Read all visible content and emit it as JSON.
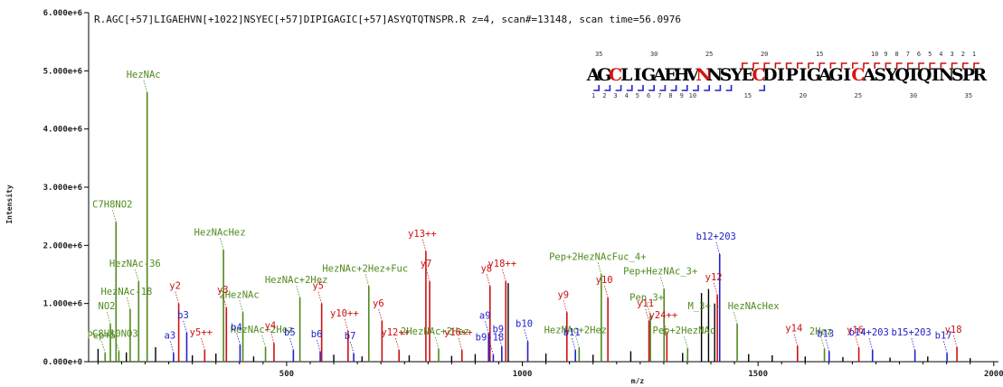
{
  "colors": {
    "b": "#2222cc",
    "y": "#cc1111",
    "glycan": "#4f8a1c",
    "noise": "#000000",
    "mod": "#dd1111"
  },
  "chart_data": {
    "type": "bar",
    "title": "R.AGC[+57]LIGAEHVN[+1022]NSYEC[+57]DIPIGAGIC[+57]ASYQTQTNSPR.R z=4, scan#=13148, scan time=56.0976",
    "xlabel": "m/z",
    "ylabel": "Intensity",
    "xlim": [
      80,
      2010
    ],
    "ylim": [
      0,
      6000000
    ],
    "x_ticks": [
      {
        "value": 500,
        "label": "500"
      },
      {
        "value": 1000,
        "label": "1000"
      },
      {
        "value": 1500,
        "label": "1500"
      },
      {
        "value": 2000,
        "label": "2000"
      }
    ],
    "y_ticks": [
      {
        "value": 0,
        "label": "0.000e+0"
      },
      {
        "value": 1000000,
        "label": "1.000e+6"
      },
      {
        "value": 2000000,
        "label": "2.000e+6"
      },
      {
        "value": 3000000,
        "label": "3.000e+6"
      },
      {
        "value": 4000000,
        "label": "4.000e+6"
      },
      {
        "value": 5000000,
        "label": "5.000e+6"
      },
      {
        "value": 6000000,
        "label": "6.000e+6"
      }
    ],
    "sequence": {
      "letters": [
        "A",
        "G",
        "C",
        "L",
        "I",
        "G",
        "A",
        "E",
        "H",
        "V",
        "N",
        "N",
        "S",
        "Y",
        "E",
        "C",
        "D",
        "I",
        "P",
        "I",
        "G",
        "A",
        "G",
        "I",
        "C",
        "A",
        "S",
        "Y",
        "Q",
        "T",
        "Q",
        "T",
        "N",
        "S",
        "P",
        "R"
      ],
      "modified_positions": [
        2,
        10,
        15,
        24
      ],
      "top_numbers": [
        {
          "pos": 1,
          "label": "35"
        },
        {
          "pos": 6,
          "label": "30"
        },
        {
          "pos": 11,
          "label": "25"
        },
        {
          "pos": 16,
          "label": "20"
        },
        {
          "pos": 21,
          "label": "15"
        },
        {
          "pos": 26,
          "label": "10"
        },
        {
          "pos": 27,
          "label": "9"
        },
        {
          "pos": 28,
          "label": "8"
        },
        {
          "pos": 29,
          "label": "7"
        },
        {
          "pos": 30,
          "label": "6"
        },
        {
          "pos": 31,
          "label": "5"
        },
        {
          "pos": 32,
          "label": "4"
        },
        {
          "pos": 33,
          "label": "3"
        },
        {
          "pos": 34,
          "label": "2"
        },
        {
          "pos": 35,
          "label": "1"
        }
      ],
      "bottom_numbers": [
        {
          "pos": 1,
          "label": "1"
        },
        {
          "pos": 2,
          "label": "2"
        },
        {
          "pos": 3,
          "label": "3"
        },
        {
          "pos": 4,
          "label": "4"
        },
        {
          "pos": 5,
          "label": "5"
        },
        {
          "pos": 6,
          "label": "6"
        },
        {
          "pos": 7,
          "label": "7"
        },
        {
          "pos": 8,
          "label": "8"
        },
        {
          "pos": 9,
          "label": "9"
        },
        {
          "pos": 10,
          "label": "10"
        },
        {
          "pos": 15,
          "label": "15"
        },
        {
          "pos": 20,
          "label": "20"
        },
        {
          "pos": 25,
          "label": "25"
        },
        {
          "pos": 30,
          "label": "30"
        },
        {
          "pos": 35,
          "label": "35"
        }
      ],
      "y_ion_cleavages": [
        14,
        15,
        16,
        17,
        18,
        19,
        20,
        21,
        22,
        23,
        24,
        25,
        26,
        27,
        28,
        29,
        30,
        31,
        32,
        33,
        34,
        35
      ],
      "b_ion_cleavages": [
        1,
        2,
        3,
        4,
        5,
        6,
        7,
        8,
        9,
        10,
        11,
        12,
        13,
        16
      ]
    },
    "series": [
      {
        "name": "glycan",
        "peaks": [
          {
            "mz": 204.1,
            "intensity": 4630000,
            "label": "HezNAc"
          },
          {
            "mz": 138.1,
            "intensity": 2400000,
            "label": "C7H8NO2"
          },
          {
            "mz": 186.1,
            "intensity": 1380000,
            "label": "HezNAc-36"
          },
          {
            "mz": 168.1,
            "intensity": 900000,
            "label": "HezNAc-18"
          },
          {
            "mz": 126.1,
            "intensity": 650000,
            "label": "NO2"
          },
          {
            "mz": 144.1,
            "intensity": 180000,
            "label": "C8H10NO3"
          },
          {
            "mz": 115.0,
            "intensity": 150000,
            "label": "Pep+5"
          },
          {
            "mz": 366.1,
            "intensity": 1920000,
            "label": "HezNAcHez"
          },
          {
            "mz": 407.2,
            "intensity": 850000,
            "label": "2HezNAc"
          },
          {
            "mz": 528.2,
            "intensity": 1100000,
            "label": "HezNAc+2Hez"
          },
          {
            "mz": 674.3,
            "intensity": 1300000,
            "label": "HezNAc+2Hez+Fuc"
          },
          {
            "mz": 1167.5,
            "intensity": 1500000,
            "label": "Pep+2HezNAcFuc_4+"
          },
          {
            "mz": 1300.6,
            "intensity": 1250000,
            "label": "Pep+HezNAc_3+"
          },
          {
            "mz": 1271.6,
            "intensity": 800000,
            "label": "Pep_3+"
          },
          {
            "mz": 1455.7,
            "intensity": 650000,
            "label": "M_3+ - HezNAcHex"
          },
          {
            "mz": 455.2,
            "intensity": 250000,
            "label": "HezNAc+2Hez"
          },
          {
            "mz": 822.4,
            "intensity": 220000,
            "label": "2HezNAc+2Hez"
          },
          {
            "mz": 1120.5,
            "intensity": 240000,
            "label": "HezNAc+2Hez"
          },
          {
            "mz": 1350.6,
            "intensity": 230000,
            "label": "Pep+2HezNAc"
          },
          {
            "mz": 1640.8,
            "intensity": 220000,
            "label": "2Hez"
          }
        ]
      },
      {
        "name": "y",
        "peaks": [
          {
            "mz": 271.1,
            "intensity": 1000000,
            "label": "y2"
          },
          {
            "mz": 372.2,
            "intensity": 930000,
            "label": "y3"
          },
          {
            "mz": 473.2,
            "intensity": 320000,
            "label": "y4"
          },
          {
            "mz": 574.3,
            "intensity": 1000000,
            "label": "y5"
          },
          {
            "mz": 702.3,
            "intensity": 700000,
            "label": "y6"
          },
          {
            "mz": 803.4,
            "intensity": 1380000,
            "label": "y7"
          },
          {
            "mz": 931.4,
            "intensity": 1300000,
            "label": "y8"
          },
          {
            "mz": 1094.5,
            "intensity": 850000,
            "label": "y9"
          },
          {
            "mz": 1181.5,
            "intensity": 1100000,
            "label": "y10"
          },
          {
            "mz": 1268.6,
            "intensity": 700000,
            "label": "y11"
          },
          {
            "mz": 1413.6,
            "intensity": 1150000,
            "label": "y12"
          },
          {
            "mz": 1583.7,
            "intensity": 270000,
            "label": "y14"
          },
          {
            "mz": 1713.8,
            "intensity": 240000,
            "label": "y16"
          },
          {
            "mz": 1921.9,
            "intensity": 250000,
            "label": "y18"
          },
          {
            "mz": 795.4,
            "intensity": 1900000,
            "label": "y13++"
          },
          {
            "mz": 964.9,
            "intensity": 1380000,
            "label": "y18++"
          },
          {
            "mz": 630.3,
            "intensity": 530000,
            "label": "y10++"
          },
          {
            "mz": 738.4,
            "intensity": 200000,
            "label": "y12++"
          },
          {
            "mz": 871.9,
            "intensity": 200000,
            "label": "y16++"
          },
          {
            "mz": 1306.6,
            "intensity": 500000,
            "label": "y24++"
          },
          {
            "mz": 326.2,
            "intensity": 200000,
            "label": "y5++"
          }
        ]
      },
      {
        "name": "b",
        "peaks": [
          {
            "mz": 1418.6,
            "intensity": 1850000,
            "label": "b12+203"
          },
          {
            "mz": 1742.8,
            "intensity": 200000,
            "label": "b14+203"
          },
          {
            "mz": 1832.8,
            "intensity": 200000,
            "label": "b15+203"
          },
          {
            "mz": 1900.9,
            "intensity": 150000,
            "label": "b17"
          },
          {
            "mz": 1650.8,
            "intensity": 180000,
            "label": "b13"
          },
          {
            "mz": 288.1,
            "intensity": 500000,
            "label": "b3"
          },
          {
            "mz": 401.2,
            "intensity": 290000,
            "label": "b4"
          },
          {
            "mz": 514.3,
            "intensity": 200000,
            "label": "b5"
          },
          {
            "mz": 571.3,
            "intensity": 170000,
            "label": "b6"
          },
          {
            "mz": 642.3,
            "intensity": 140000,
            "label": "b7"
          },
          {
            "mz": 928.4,
            "intensity": 490000,
            "label": "a9"
          },
          {
            "mz": 956.4,
            "intensity": 260000,
            "label": "b9"
          },
          {
            "mz": 1011.5,
            "intensity": 350000,
            "label": "b10"
          },
          {
            "mz": 938.4,
            "intensity": 120000,
            "label": "b9-18"
          },
          {
            "mz": 260.1,
            "intensity": 150000,
            "label": "a3"
          },
          {
            "mz": 1112.5,
            "intensity": 200000,
            "label": "b11"
          }
        ]
      }
    ],
    "noise_peaks": [
      {
        "mz": 1380.0,
        "intensity": 1180000
      },
      {
        "mz": 1395.0,
        "intensity": 1250000
      },
      {
        "mz": 1408.0,
        "intensity": 1000000
      },
      {
        "mz": 970.0,
        "intensity": 1350000
      },
      {
        "mz": 100.0,
        "intensity": 220000
      },
      {
        "mz": 160.0,
        "intensity": 160000
      },
      {
        "mz": 222.0,
        "intensity": 250000
      },
      {
        "mz": 300.0,
        "intensity": 110000
      },
      {
        "mz": 350.0,
        "intensity": 140000
      },
      {
        "mz": 430.0,
        "intensity": 90000
      },
      {
        "mz": 600.0,
        "intensity": 120000
      },
      {
        "mz": 660.0,
        "intensity": 90000
      },
      {
        "mz": 760.0,
        "intensity": 110000
      },
      {
        "mz": 850.0,
        "intensity": 100000
      },
      {
        "mz": 900.0,
        "intensity": 130000
      },
      {
        "mz": 1050.0,
        "intensity": 140000
      },
      {
        "mz": 1150.0,
        "intensity": 120000
      },
      {
        "mz": 1230.0,
        "intensity": 180000
      },
      {
        "mz": 1340.0,
        "intensity": 150000
      },
      {
        "mz": 1480.0,
        "intensity": 130000
      },
      {
        "mz": 1530.0,
        "intensity": 110000
      },
      {
        "mz": 1600.0,
        "intensity": 90000
      },
      {
        "mz": 1680.0,
        "intensity": 80000
      },
      {
        "mz": 1780.0,
        "intensity": 70000
      },
      {
        "mz": 1860.0,
        "intensity": 90000
      },
      {
        "mz": 1950.0,
        "intensity": 60000
      }
    ]
  }
}
